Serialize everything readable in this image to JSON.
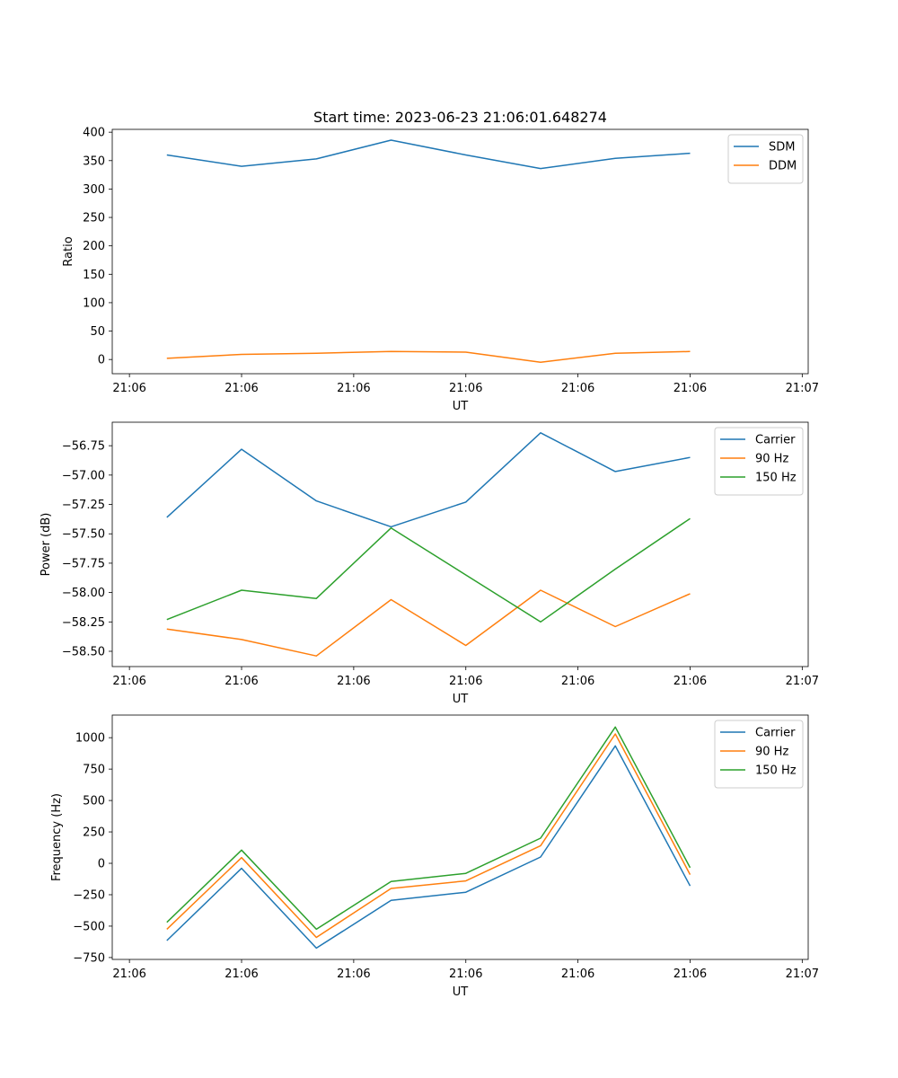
{
  "colors": {
    "c0": "#1f77b4",
    "c1": "#ff7f0e",
    "c2": "#2ca02c",
    "axes": "#000000",
    "legend_border": "#cccccc",
    "background": "#ffffff"
  },
  "chart_data": [
    {
      "type": "line",
      "title": "Start time: 2023-06-23 21:06:01.648274",
      "xlabel": "UT",
      "ylabel": "Ratio",
      "x_tick_labels": [
        "21:06",
        "21:06",
        "21:06",
        "21:06",
        "21:06",
        "21:06",
        "21:07"
      ],
      "xlim": [
        -0.23,
        9.08
      ],
      "ylim": [
        -25,
        405
      ],
      "yticks": [
        0,
        50,
        100,
        150,
        200,
        250,
        300,
        350,
        400
      ],
      "ytick_labels": [
        "0",
        "50",
        "100",
        "150",
        "200",
        "250",
        "300",
        "350",
        "400"
      ],
      "grid": false,
      "legend": "upper right",
      "x": [
        0.5,
        1.5,
        2.5,
        3.5,
        4.5,
        5.5,
        6.5,
        7.5
      ],
      "series": [
        {
          "name": "SDM",
          "color": "#1f77b4",
          "values": [
            360,
            340,
            353,
            386,
            360,
            336,
            354,
            363
          ]
        },
        {
          "name": "DDM",
          "color": "#ff7f0e",
          "values": [
            2,
            9,
            11,
            14,
            13,
            -5,
            11,
            14
          ]
        }
      ]
    },
    {
      "type": "line",
      "title": "",
      "xlabel": "UT",
      "ylabel": "Power (dB)",
      "x_tick_labels": [
        "21:06",
        "21:06",
        "21:06",
        "21:06",
        "21:06",
        "21:06",
        "21:07"
      ],
      "xlim": [
        -0.23,
        9.08
      ],
      "ylim": [
        -58.63,
        -56.55
      ],
      "yticks": [
        -58.5,
        -58.25,
        -58.0,
        -57.75,
        -57.5,
        -57.25,
        -57.0,
        -56.75
      ],
      "ytick_labels": [
        "−58.50",
        "−58.25",
        "−58.00",
        "−57.75",
        "−57.50",
        "−57.25",
        "−57.00",
        "−56.75"
      ],
      "grid": false,
      "legend": "upper right",
      "x": [
        0.5,
        1.5,
        2.5,
        3.5,
        4.5,
        5.5,
        6.5,
        7.5
      ],
      "series": [
        {
          "name": "Carrier",
          "color": "#1f77b4",
          "values": [
            -57.36,
            -56.78,
            -57.22,
            -57.44,
            -57.23,
            -56.64,
            -56.97,
            -56.85
          ]
        },
        {
          "name": "90 Hz",
          "color": "#ff7f0e",
          "values": [
            -58.31,
            -58.4,
            -58.54,
            -58.06,
            -58.45,
            -57.98,
            -58.29,
            -58.01
          ]
        },
        {
          "name": "150 Hz",
          "color": "#2ca02c",
          "values": [
            -58.23,
            -57.98,
            -58.05,
            -57.45,
            -57.85,
            -58.25,
            -57.8,
            -57.37
          ]
        }
      ]
    },
    {
      "type": "line",
      "title": "",
      "xlabel": "UT",
      "ylabel": "Frequency (Hz)",
      "x_tick_labels": [
        "21:06",
        "21:06",
        "21:06",
        "21:06",
        "21:06",
        "21:06",
        "21:07"
      ],
      "xlim": [
        -0.23,
        9.08
      ],
      "ylim": [
        -765,
        1180
      ],
      "yticks": [
        -750,
        -500,
        -250,
        0,
        250,
        500,
        750,
        1000
      ],
      "ytick_labels": [
        "−750",
        "−500",
        "−250",
        "0",
        "250",
        "500",
        "750",
        "1000"
      ],
      "grid": false,
      "legend": "upper right",
      "x": [
        0.5,
        1.5,
        2.5,
        3.5,
        4.5,
        5.5,
        6.5,
        7.5
      ],
      "series": [
        {
          "name": "Carrier",
          "color": "#1f77b4",
          "values": [
            -615,
            -40,
            -675,
            -295,
            -230,
            50,
            935,
            -180
          ]
        },
        {
          "name": "90 Hz",
          "color": "#ff7f0e",
          "values": [
            -525,
            45,
            -590,
            -200,
            -140,
            140,
            1030,
            -90
          ]
        },
        {
          "name": "150 Hz",
          "color": "#2ca02c",
          "values": [
            -470,
            105,
            -525,
            -145,
            -80,
            200,
            1085,
            -35
          ]
        }
      ]
    }
  ]
}
